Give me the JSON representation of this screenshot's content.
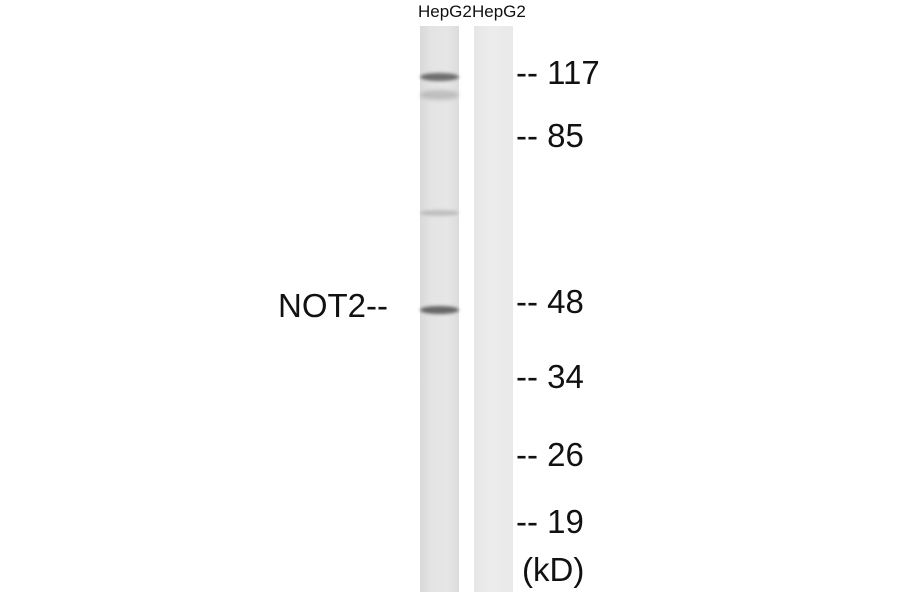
{
  "lanes": [
    {
      "label": "HepG2"
    },
    {
      "label": "HepG2"
    }
  ],
  "target_label": "NOT2--",
  "markers": [
    "-- 117",
    "-- 85",
    "-- 48",
    "-- 34",
    "-- 26",
    "-- 19"
  ],
  "unit_label": "(kD)"
}
